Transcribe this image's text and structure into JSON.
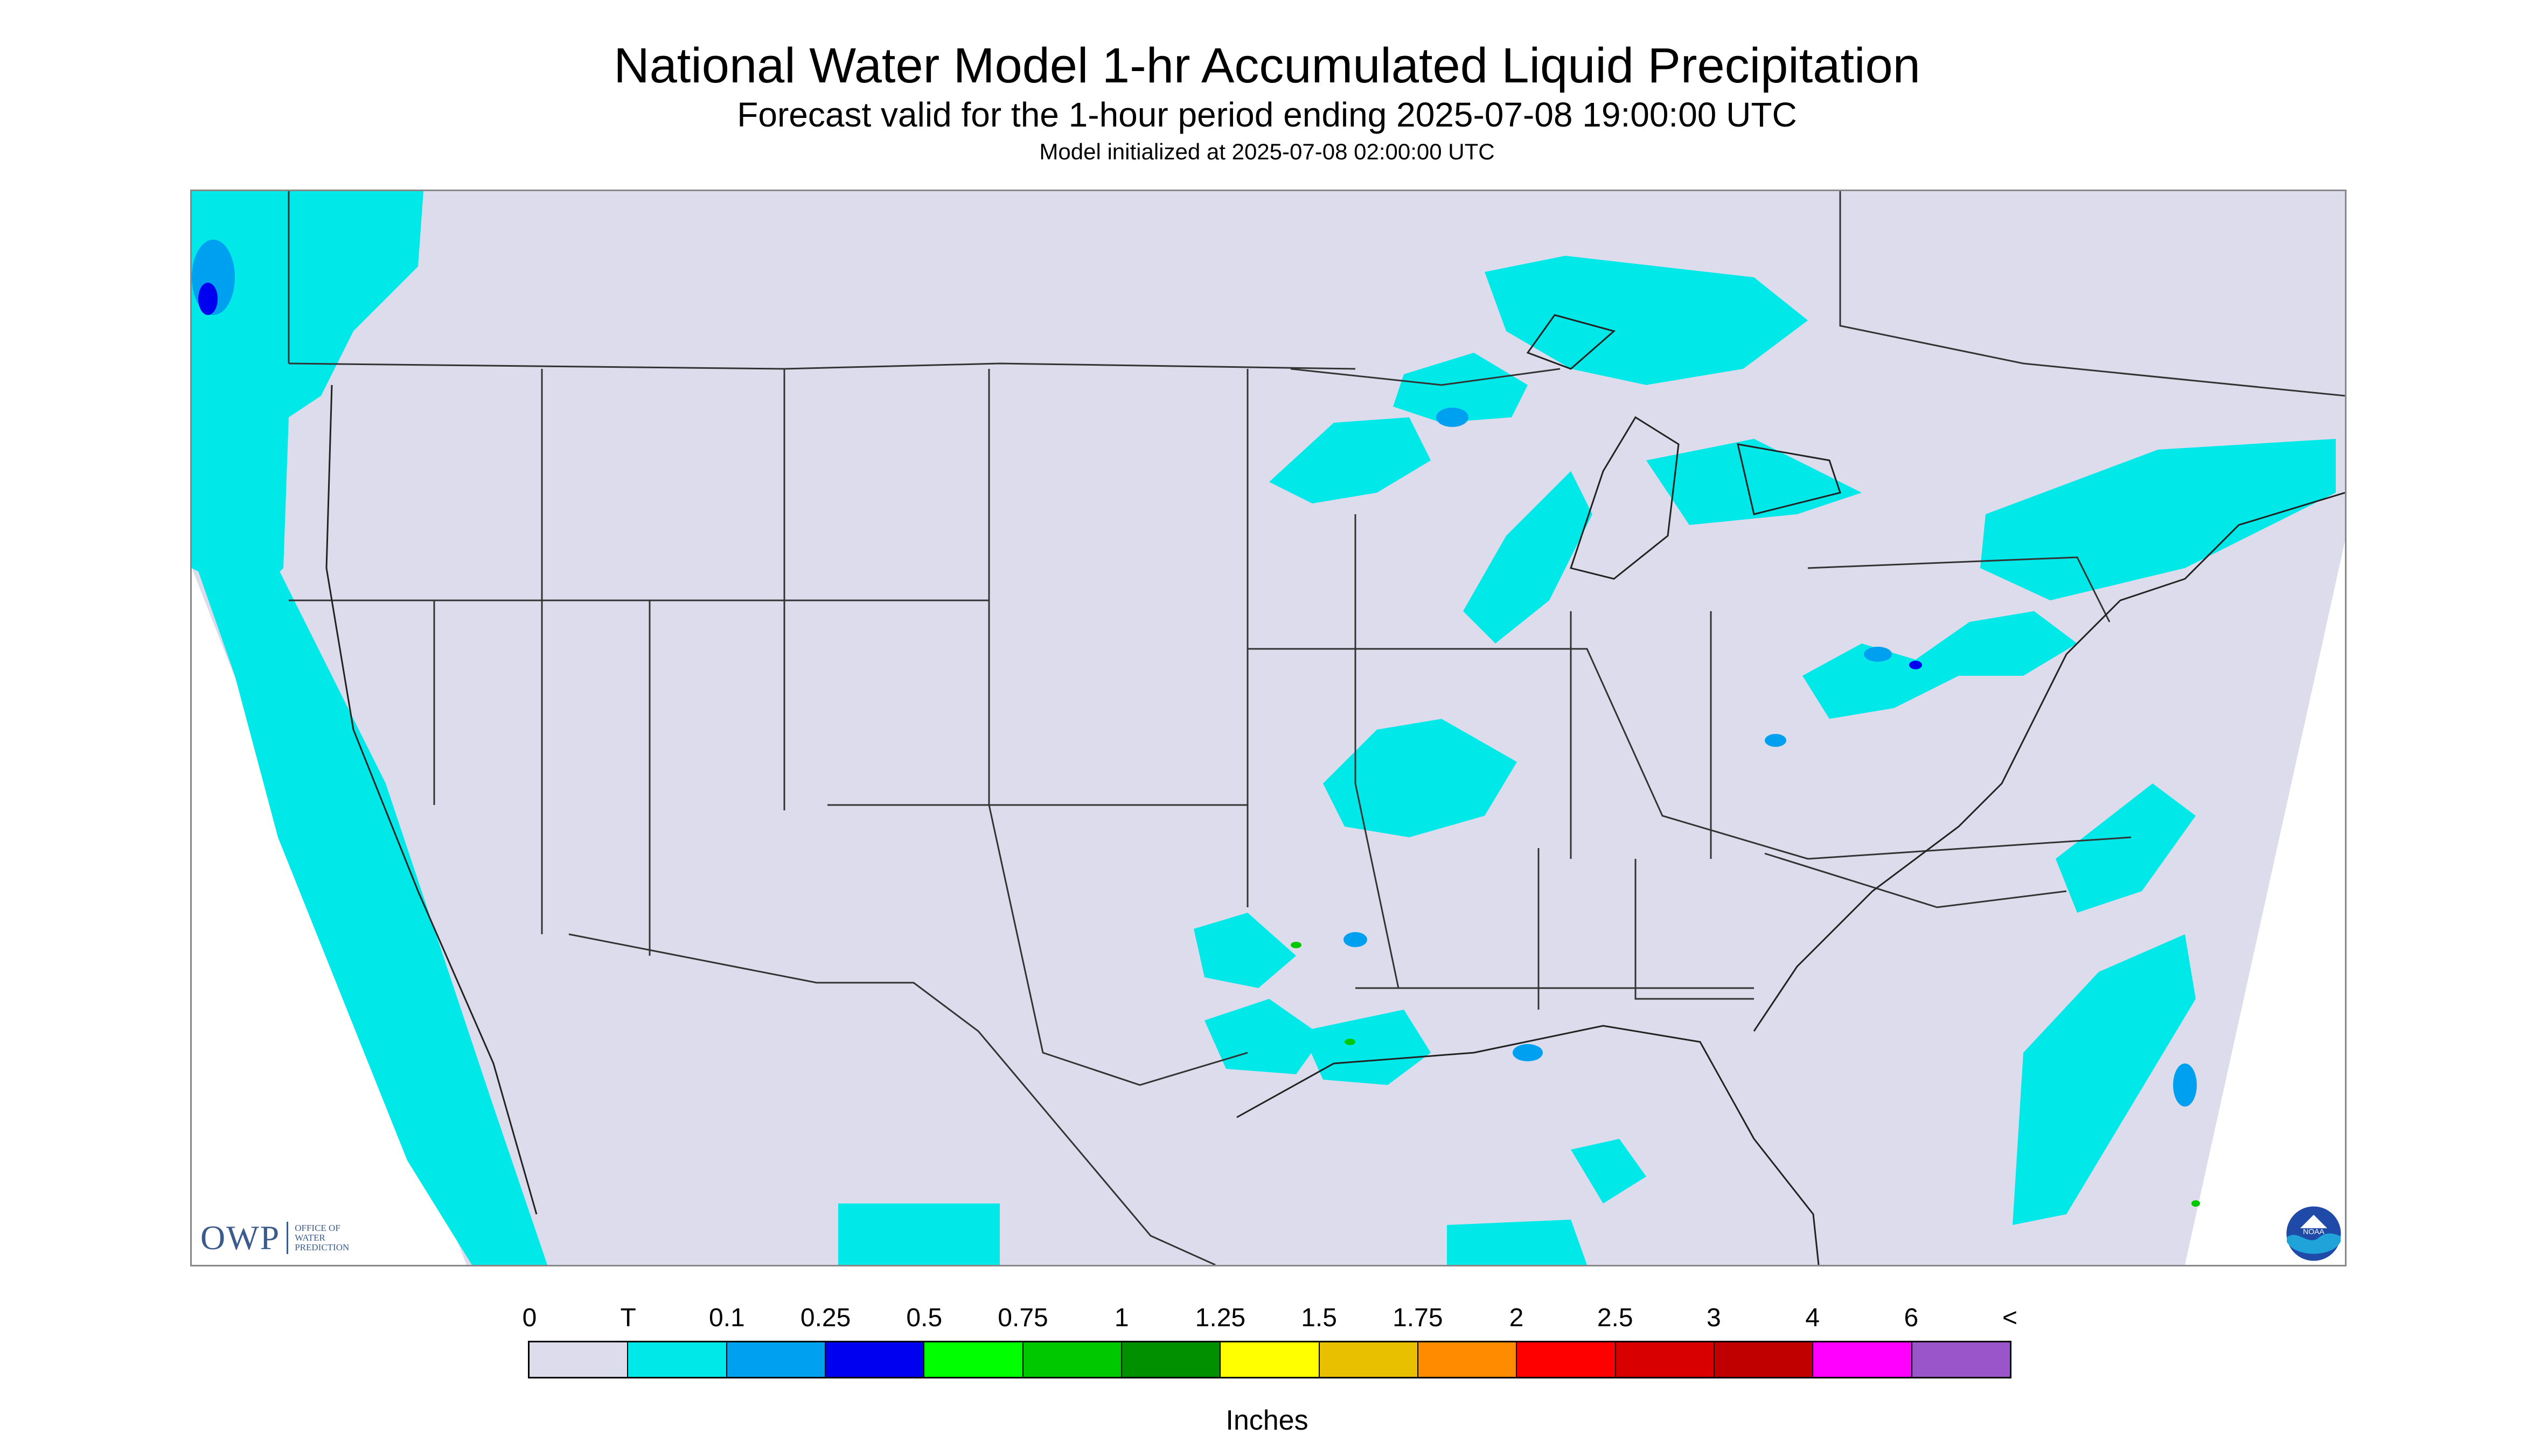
{
  "title": "National Water Model 1-hr Accumulated Liquid Precipitation",
  "subtitle": "Forecast valid for the 1-hour period ending 2025-07-08 19:00:00 UTC",
  "model_init": "Model initialized at 2025-07-08 02:00:00 UTC",
  "legend": {
    "labels": [
      "0",
      "T",
      "0.1",
      "0.25",
      "0.5",
      "0.75",
      "1",
      "1.25",
      "1.5",
      "1.75",
      "2",
      "2.5",
      "3",
      "4",
      "6",
      "<"
    ],
    "colors": [
      "#dcdcec",
      "#00e8e8",
      "#00a0f0",
      "#0000f0",
      "#00ff00",
      "#00c800",
      "#009000",
      "#ffff00",
      "#e8c000",
      "#ff8c00",
      "#ff0000",
      "#d80000",
      "#c00000",
      "#ff00ff",
      "#9955c9"
    ],
    "units": "Inches"
  },
  "logos": {
    "owp_mark": "OWP",
    "owp_text": [
      "OFFICE OF",
      "WATER",
      "PREDICTION"
    ],
    "noaa": "NOAA"
  },
  "colors": {
    "land": "#dcdcec",
    "trace": "#00e8e8",
    "light": "#00a0f0",
    "moderate": "#0000f0",
    "green": "#00c800",
    "border": "#333333"
  }
}
